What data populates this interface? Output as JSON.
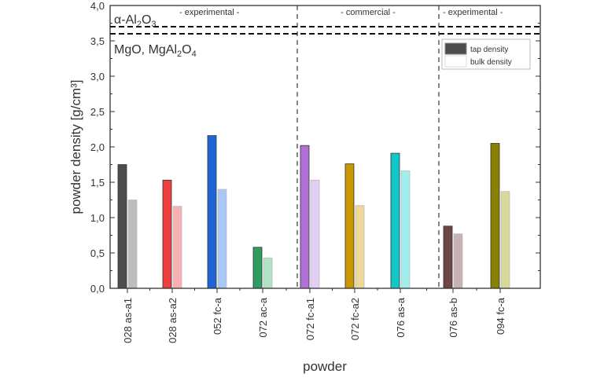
{
  "chart_data": {
    "type": "bar",
    "xlabel": "powder",
    "ylabel": "powder density  [g/cm³]",
    "ylim": [
      0,
      4.0
    ],
    "yticks": [
      "0,0",
      "0,5",
      "1,0",
      "1,5",
      "2,0",
      "2,5",
      "3,0",
      "3,5",
      "4,0"
    ],
    "categories": [
      "028 as-a1",
      "028 as-a2",
      "052 fc-a",
      "072 ac-a",
      "072 fc-a1",
      "072 fc-a2",
      "076 as-a",
      "076 as-b",
      "094 fc-a"
    ],
    "series": [
      {
        "name": "tap density",
        "values": [
          1.75,
          1.53,
          2.16,
          0.58,
          2.02,
          1.76,
          1.91,
          0.88,
          2.05
        ],
        "colors": [
          "#4d4d4d",
          "#ef3e3e",
          "#1e66d8",
          "#2e9e60",
          "#b070d8",
          "#c89800",
          "#10c8c8",
          "#6e4646",
          "#888000"
        ]
      },
      {
        "name": "bulk density",
        "values": [
          1.25,
          1.16,
          1.4,
          0.43,
          1.53,
          1.17,
          1.66,
          0.77,
          1.37
        ],
        "colors": [
          "#bdbdbd",
          "#f8b0b0",
          "#a8c8f5",
          "#b0e2c6",
          "#e2cdf4",
          "#f0d898",
          "#a0eeee",
          "#c8b2b2",
          "#d8d89a"
        ]
      }
    ],
    "legend": {
      "position": "top-right",
      "entries": [
        "tap density",
        "bulk density"
      ],
      "colors": [
        "#4d4d4d",
        "#ffffff"
      ]
    },
    "reference_lines": [
      {
        "value": 3.7,
        "label": "α-Al₂O₃"
      },
      {
        "value": 3.6,
        "label": "MgO, MgAl₂O₄"
      }
    ],
    "group_labels": [
      "- experimental -",
      "-  commercial  -",
      "- experimental -"
    ],
    "grid": false
  }
}
